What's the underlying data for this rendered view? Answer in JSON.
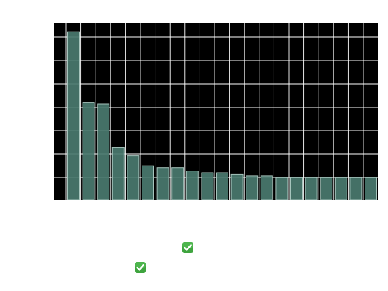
{
  "chart_data": {
    "type": "bar",
    "categories": [
      "",
      "",
      "",
      "",
      "",
      "",
      "",
      "",
      "",
      "",
      "",
      "",
      "",
      "",
      "",
      "",
      "",
      "",
      "",
      "",
      ""
    ],
    "values": [
      100,
      58,
      57,
      31,
      26,
      20,
      19,
      19,
      17,
      16,
      16,
      15,
      14,
      14,
      13,
      13,
      13,
      13,
      13,
      13,
      13
    ],
    "title": "",
    "xlabel": "",
    "ylabel": "",
    "ylim": [
      0,
      105
    ],
    "grid": true,
    "colors": {
      "plot_background": "#000000",
      "bar_fill": "#4a7a6f",
      "bar_stroke": "#a6c4bc",
      "grid": "#ffffff"
    }
  },
  "icons": {
    "check_mark_1": "check-mark-button-icon",
    "check_mark_2": "check-mark-button-icon",
    "check_color": "#3fa43f"
  }
}
